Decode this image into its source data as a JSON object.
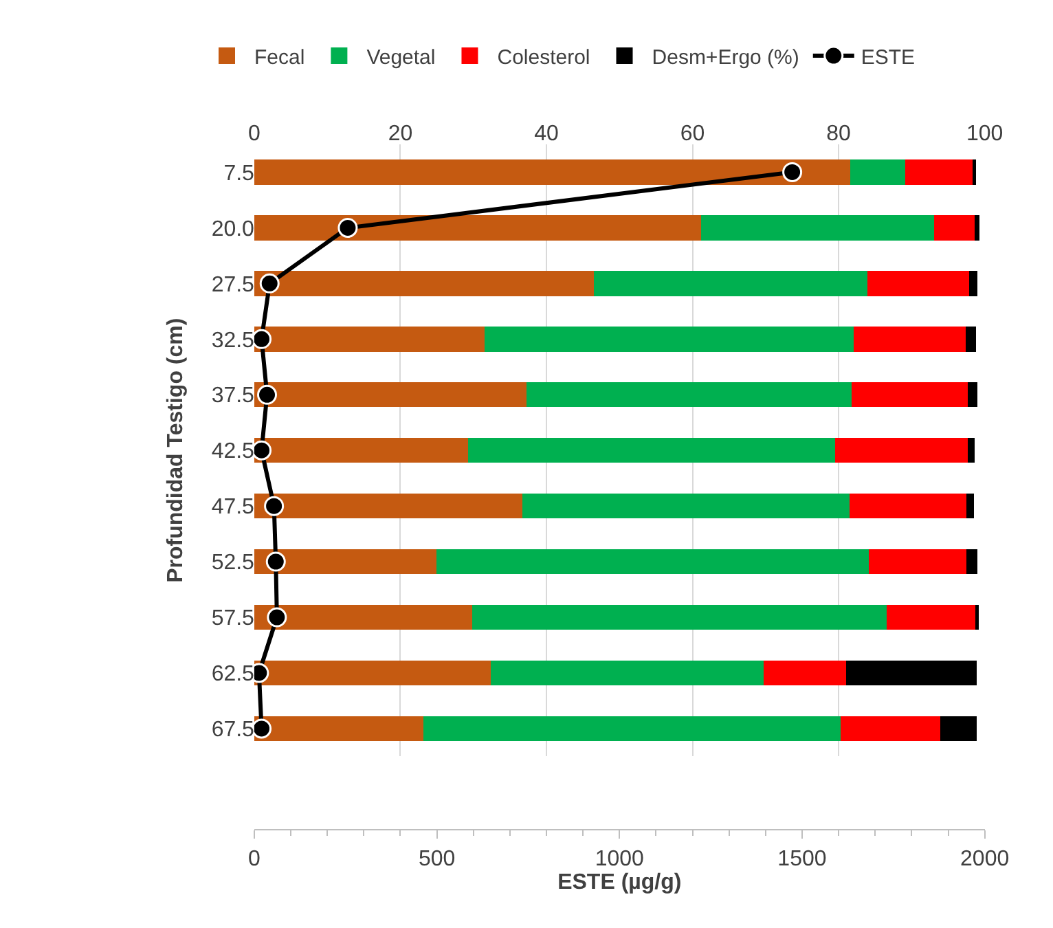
{
  "chart_data": {
    "type": "bar",
    "orientation": "horizontal",
    "stacked": true,
    "ylabel": "Profundidad Testigo (cm)",
    "xlabel": "ESTE (µg/g)",
    "categories": [
      "7.5",
      "20.0",
      "27.5",
      "32.5",
      "37.5",
      "42.5",
      "47.5",
      "52.5",
      "57.5",
      "62.5",
      "67.5"
    ],
    "series": [
      {
        "name": "Fecal",
        "color": "#c55a11",
        "axis": "x2",
        "values": [
          81.6,
          61.2,
          46.5,
          31.5,
          37.3,
          29.3,
          36.7,
          24.9,
          29.8,
          32.4,
          23.2
        ]
      },
      {
        "name": "Vegetal",
        "color": "#00b050",
        "axis": "x2",
        "values": [
          7.5,
          31.9,
          37.4,
          50.6,
          44.5,
          50.2,
          44.8,
          59.2,
          56.8,
          37.3,
          57.1
        ]
      },
      {
        "name": "Colesterol",
        "color": "#ff0000",
        "axis": "x2",
        "values": [
          9.2,
          5.5,
          14.0,
          15.3,
          15.9,
          18.2,
          16.0,
          13.4,
          12.1,
          11.3,
          13.6
        ]
      },
      {
        "name": "Desm+Ergo (%)",
        "color": "#000000",
        "axis": "x2",
        "values": [
          0.5,
          0.7,
          1.1,
          1.4,
          1.3,
          0.9,
          1.0,
          1.5,
          0.5,
          17.9,
          5.0
        ]
      },
      {
        "name": "ESTE",
        "color": "#000000",
        "type": "line",
        "marker": "circle",
        "line_style": "solid",
        "values": [
          1473,
          256,
          42,
          20,
          35,
          20,
          54,
          59,
          62,
          13,
          20
        ]
      }
    ],
    "x2lim": [
      0,
      100
    ],
    "x2ticks": [
      0,
      20,
      40,
      60,
      80,
      100
    ],
    "xlim": [
      0,
      2000
    ],
    "xticks": [
      0,
      500,
      1000,
      1500,
      2000
    ],
    "grid": "x",
    "legend": "top"
  }
}
